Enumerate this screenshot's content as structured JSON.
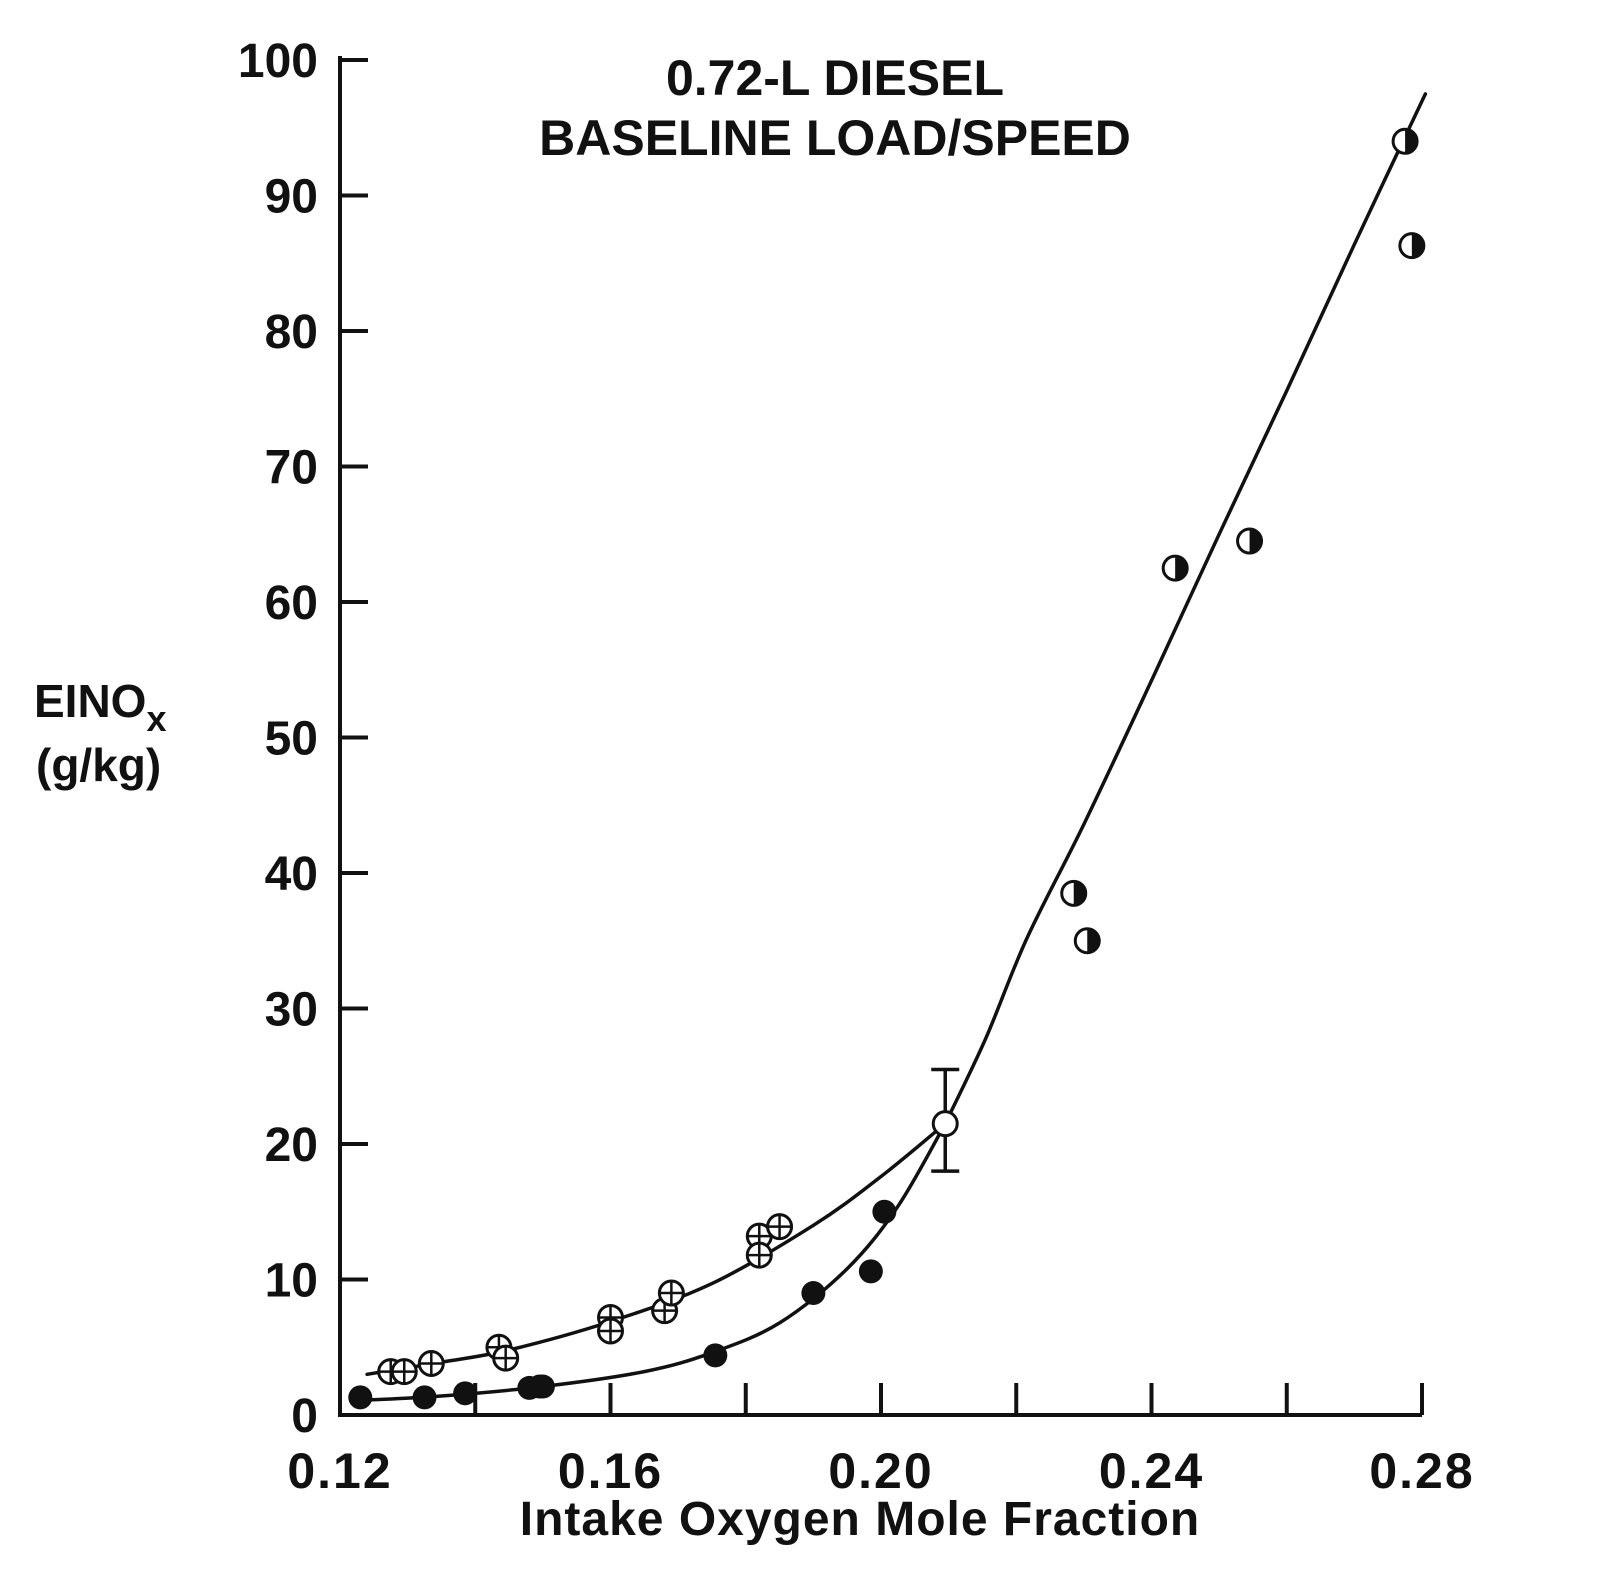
{
  "chart_data": {
    "type": "scatter",
    "title": [
      "0.72-L DIESEL",
      "BASELINE LOAD/SPEED"
    ],
    "xlabel": "Intake Oxygen Mole Fraction",
    "ylabel": {
      "main": "EINO",
      "subscript": "x",
      "unit": "(g/kg)"
    },
    "xlim": [
      0.12,
      0.28
    ],
    "ylim": [
      0,
      100
    ],
    "x_ticks": [
      "0.12",
      "0.16",
      "0.20",
      "0.24",
      "0.28"
    ],
    "x_tick_values": [
      0.12,
      0.16,
      0.2,
      0.24,
      0.28
    ],
    "x_minor_tick_values": [
      0.14,
      0.18,
      0.22,
      0.26
    ],
    "y_ticks": [
      "0",
      "10",
      "20",
      "30",
      "40",
      "50",
      "60",
      "70",
      "80",
      "90",
      "100"
    ],
    "y_tick_values": [
      0,
      10,
      20,
      30,
      40,
      50,
      60,
      70,
      80,
      90,
      100
    ],
    "grid": false,
    "series": [
      {
        "marker": "circle-cross",
        "points": [
          [
            0.1275,
            3.2
          ],
          [
            0.1295,
            3.2
          ],
          [
            0.1335,
            3.8
          ],
          [
            0.1435,
            5.0
          ],
          [
            0.1445,
            4.2
          ],
          [
            0.16,
            7.2
          ],
          [
            0.16,
            6.2
          ],
          [
            0.168,
            7.7
          ],
          [
            0.169,
            9.0
          ],
          [
            0.182,
            13.2
          ],
          [
            0.182,
            11.8
          ],
          [
            0.185,
            13.9
          ]
        ]
      },
      {
        "marker": "filled-circle",
        "points": [
          [
            0.123,
            1.3
          ],
          [
            0.1325,
            1.3
          ],
          [
            0.1385,
            1.6
          ],
          [
            0.148,
            2.0
          ],
          [
            0.1495,
            2.1
          ],
          [
            0.15,
            2.1
          ],
          [
            0.1755,
            4.4
          ],
          [
            0.19,
            9.0
          ],
          [
            0.1985,
            10.6
          ],
          [
            0.2005,
            15.0
          ]
        ]
      },
      {
        "marker": "open-circle",
        "points": [
          [
            0.2095,
            21.5
          ]
        ],
        "error_bar": [
          18.0,
          25.5
        ]
      },
      {
        "marker": "half-filled-circle",
        "points": [
          [
            0.2285,
            38.5
          ],
          [
            0.2305,
            35.0
          ],
          [
            0.2435,
            62.5
          ],
          [
            0.2545,
            64.5
          ],
          [
            0.2775,
            94.0
          ],
          [
            0.2785,
            86.3
          ]
        ]
      }
    ],
    "curves": [
      {
        "name": "upper",
        "points": [
          [
            0.124,
            3.0
          ],
          [
            0.135,
            3.9
          ],
          [
            0.145,
            4.8
          ],
          [
            0.16,
            6.9
          ],
          [
            0.175,
            9.7
          ],
          [
            0.19,
            14.0
          ],
          [
            0.2,
            17.6
          ],
          [
            0.2095,
            21.5
          ]
        ]
      },
      {
        "name": "lower",
        "points": [
          [
            0.124,
            1.1
          ],
          [
            0.135,
            1.4
          ],
          [
            0.15,
            2.1
          ],
          [
            0.165,
            3.2
          ],
          [
            0.175,
            4.6
          ],
          [
            0.185,
            6.8
          ],
          [
            0.195,
            10.8
          ],
          [
            0.2025,
            15.4
          ],
          [
            0.2095,
            21.5
          ]
        ]
      },
      {
        "name": "main",
        "points": [
          [
            0.2095,
            21.5
          ],
          [
            0.2155,
            27.8
          ],
          [
            0.2215,
            35.1
          ],
          [
            0.23,
            43.6
          ],
          [
            0.24,
            54.2
          ],
          [
            0.25,
            65.0
          ],
          [
            0.26,
            75.6
          ],
          [
            0.27,
            86.4
          ],
          [
            0.2805,
            97.5
          ]
        ]
      }
    ],
    "legend": "none"
  }
}
